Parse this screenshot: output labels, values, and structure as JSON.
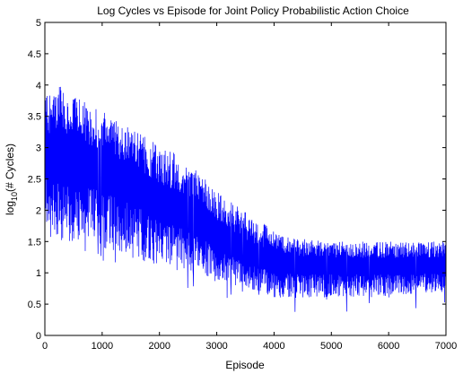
{
  "chart_data": {
    "type": "line",
    "title": "Log Cycles vs Episode for Joint Policy Probabilistic Action Choice",
    "xlabel": "Episode",
    "ylabel": {
      "prefix": "log",
      "subscript": "10",
      "suffix": "(# Cycles)"
    },
    "xlim": [
      0,
      7000
    ],
    "ylim": [
      0,
      5
    ],
    "xticks": [
      0,
      1000,
      2000,
      3000,
      4000,
      5000,
      6000,
      7000
    ],
    "yticks": [
      0,
      0.5,
      1,
      1.5,
      2,
      2.5,
      3,
      3.5,
      4,
      4.5,
      5
    ],
    "grid": false,
    "series": [
      {
        "color": "#0000ff",
        "episodes": [
          0,
          7000
        ],
        "mean_trend": {
          "x": [
            0,
            500,
            1000,
            1500,
            2000,
            2500,
            3000,
            3500,
            4000,
            4500,
            5000,
            5500,
            6000,
            6500,
            7000
          ],
          "y": [
            2.9,
            2.8,
            2.6,
            2.4,
            2.1,
            1.9,
            1.6,
            1.3,
            1.15,
            1.1,
            1.1,
            1.1,
            1.1,
            1.1,
            1.1
          ]
        },
        "band_upper": {
          "x": [
            0,
            300,
            800,
            1500,
            2500,
            3000,
            3600,
            4200,
            5000,
            6000,
            7000
          ],
          "y": [
            3.8,
            4.0,
            3.7,
            3.3,
            2.8,
            2.3,
            1.9,
            1.6,
            1.5,
            1.5,
            1.5
          ]
        },
        "band_lower": {
          "x": [
            0,
            500,
            1000,
            2000,
            3000,
            4000,
            5000,
            6000,
            7000
          ],
          "y": [
            1.5,
            1.5,
            1.4,
            1.1,
            0.9,
            0.6,
            0.6,
            0.6,
            0.7
          ]
        }
      }
    ]
  }
}
